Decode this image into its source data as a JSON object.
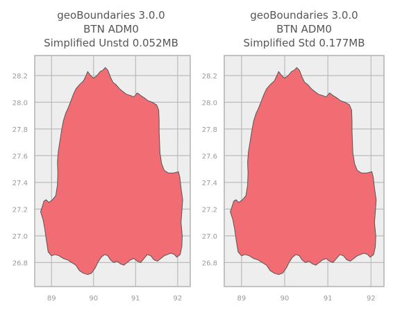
{
  "chart_data": [
    {
      "type": "map",
      "title_lines": [
        "geoBoundaries 3.0.0",
        "BTN ADM0",
        "Simplified Unstd 0.052MB"
      ],
      "xlim": [
        88.6,
        92.3
      ],
      "ylim": [
        26.62,
        28.35
      ],
      "xticks": [
        89,
        90,
        91,
        92
      ],
      "yticks": [
        26.8,
        27.0,
        27.2,
        27.4,
        27.6,
        27.8,
        28.0,
        28.2
      ],
      "grid": true,
      "fill_color": "#f26d73",
      "edge_color": "#555555",
      "background": "#eeeeee"
    },
    {
      "type": "map",
      "title_lines": [
        "geoBoundaries 3.0.0",
        "BTN ADM0",
        "Simplified Std 0.177MB"
      ],
      "xlim": [
        88.6,
        92.3
      ],
      "ylim": [
        26.62,
        28.35
      ],
      "xticks": [
        89,
        90,
        91,
        92
      ],
      "yticks": [
        26.8,
        27.0,
        27.2,
        27.4,
        27.6,
        27.8,
        28.0,
        28.2
      ],
      "grid": true,
      "fill_color": "#f26d73",
      "edge_color": "#555555",
      "background": "#eeeeee"
    }
  ]
}
